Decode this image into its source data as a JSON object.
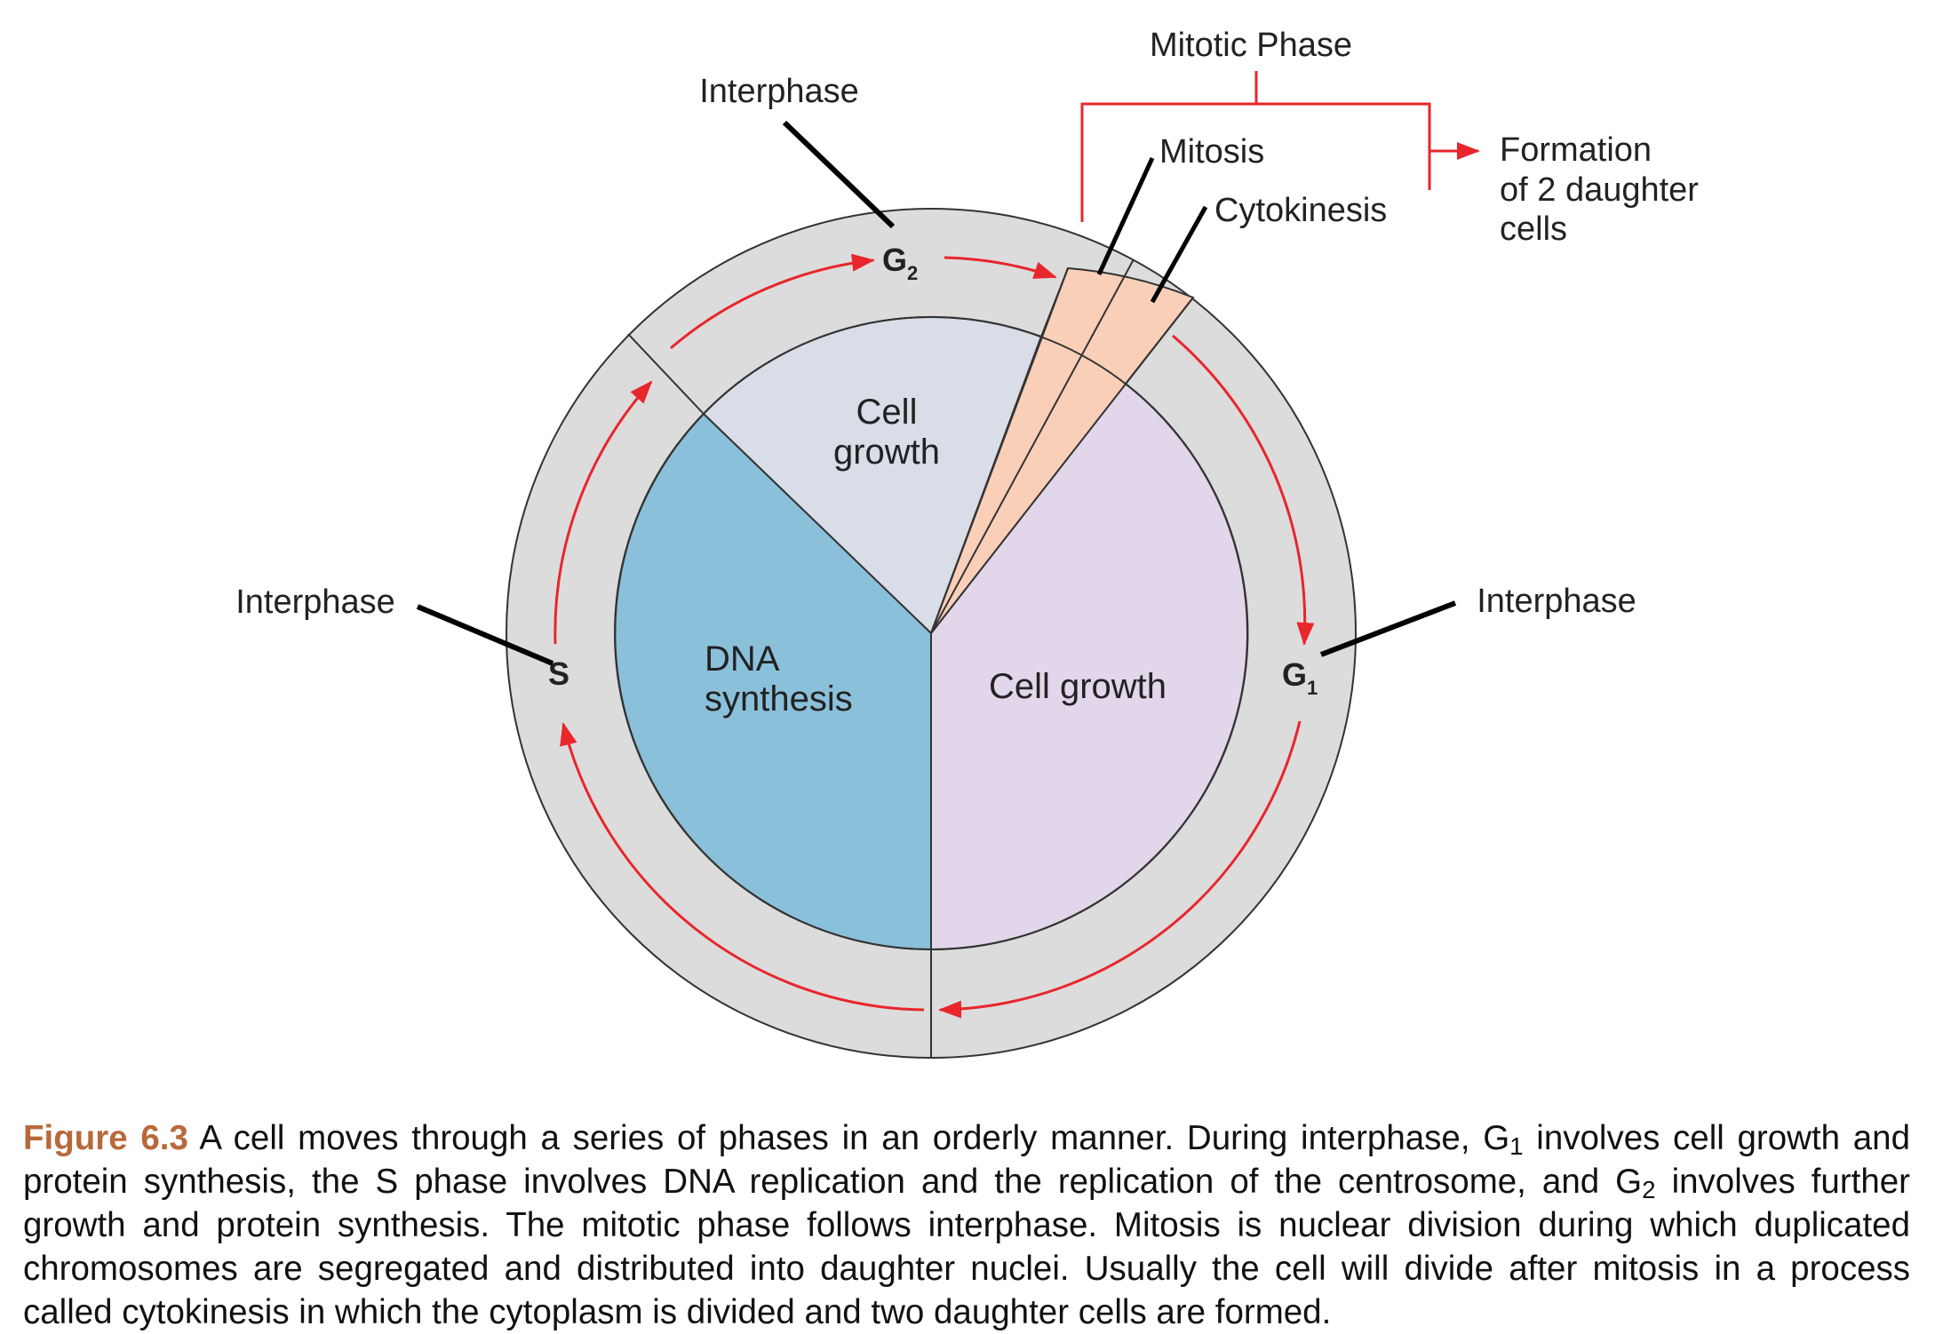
{
  "diagram": {
    "labels": {
      "mitotic_phase": "Mitotic Phase",
      "mitosis": "Mitosis",
      "cytokinesis": "Cytokinesis",
      "formation_line1": "Formation",
      "formation_line2": "of 2 daughter",
      "formation_line3": "cells",
      "interphase_top": "Interphase",
      "interphase_left": "Interphase",
      "interphase_right": "Interphase"
    },
    "phases": {
      "g2_letter": "G",
      "g2_sub": "2",
      "g1_letter": "G",
      "g1_sub": "1",
      "s": "S"
    },
    "sectors": {
      "g2_line1": "Cell",
      "g2_line2": "growth",
      "s_line1": "DNA",
      "s_line2": "synthesis",
      "g1": "Cell growth"
    },
    "colors": {
      "outer_ring": "#dcdcdc",
      "cell_growth_g2": "#d9dde8",
      "dna_synthesis": "#8bc0db",
      "cell_growth_g1": "#e2d6ea",
      "mitotic_wedge": "#f9cfb8",
      "arrows": "#e8262c",
      "leaders": "#000000"
    }
  },
  "caption": {
    "figure_label": "Figure 6.3",
    "t1": " A cell moves through a series of phases in an orderly manner. During interphase, G",
    "s1": "1",
    "t2": " involves cell growth and protein synthesis, the S phase involves DNA replication and the replication of the centrosome, and G",
    "s2": "2",
    "t3": " involves further growth and protein synthesis. The mitotic phase follows interphase. Mitosis is nuclear division during which duplicated chromosomes are segregated and distributed into daughter nuclei. Usually the cell will divide after mitosis in a process called cytokinesis in which the cytoplasm is divided and two daughter cells are formed."
  }
}
